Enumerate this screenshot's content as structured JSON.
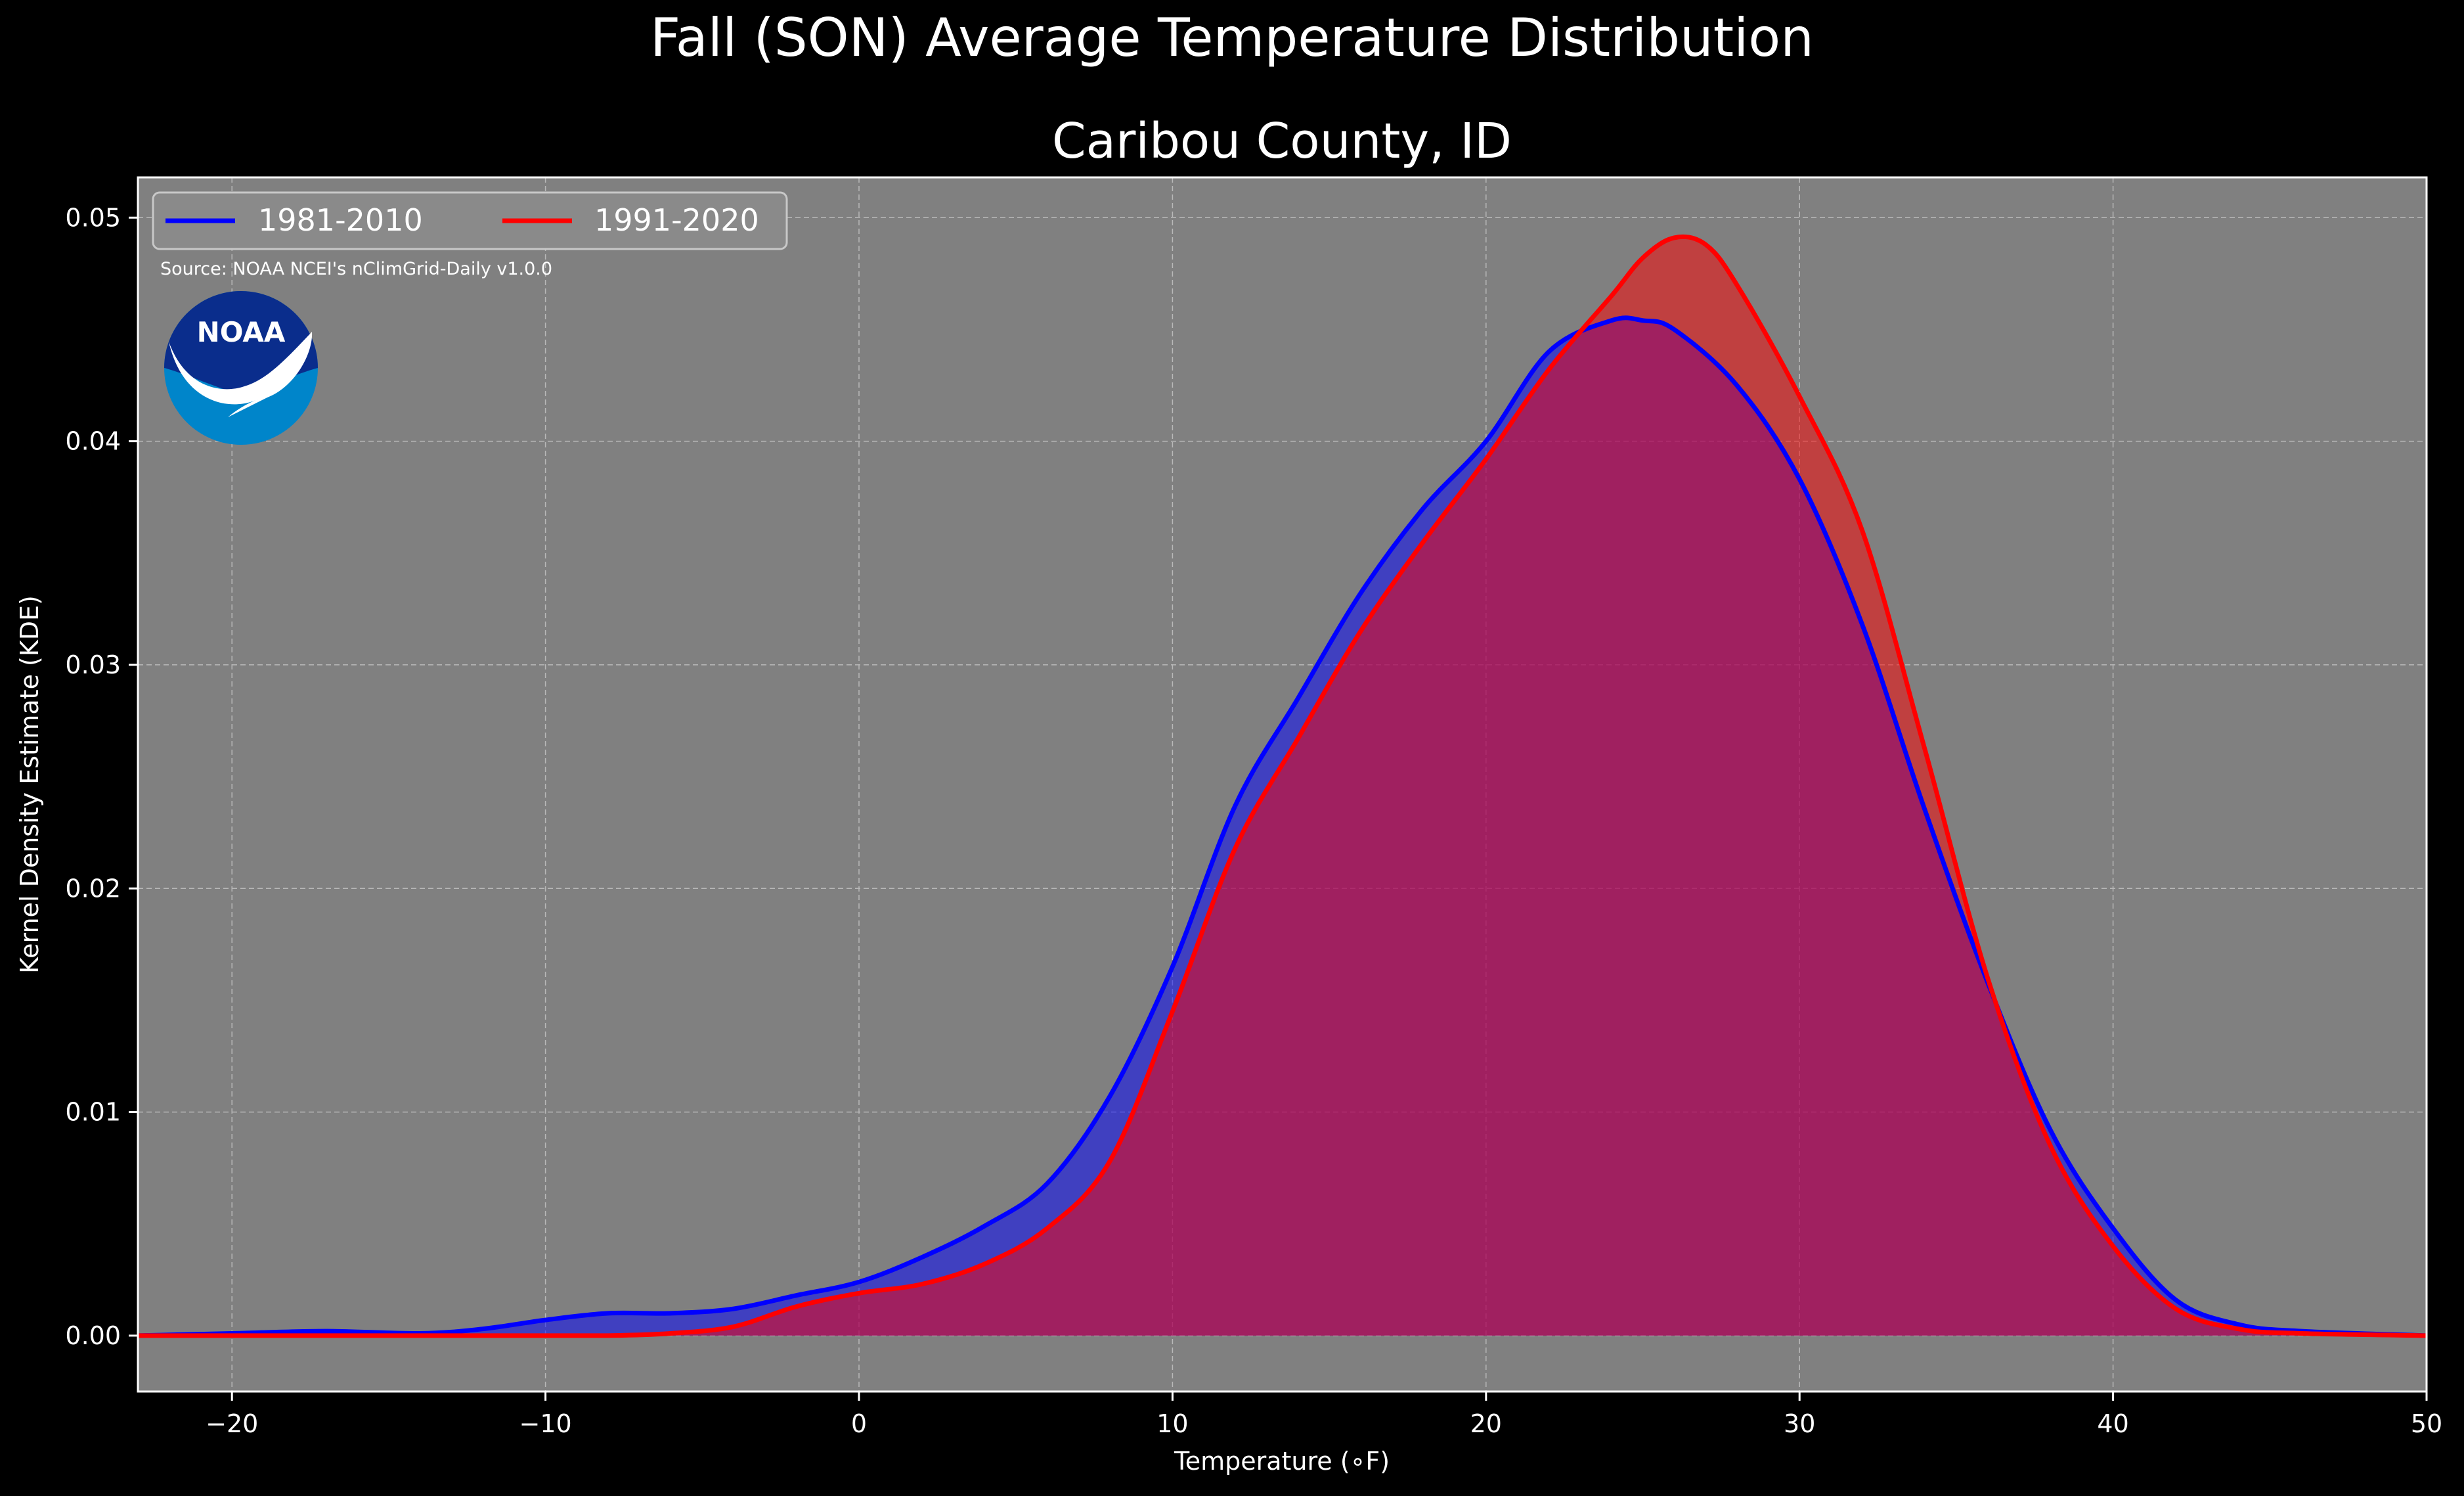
{
  "suptitle": "Fall (SON) Average Temperature Distribution",
  "source_note": "Source: NOAA NCEI's nClimGrid-Daily v1.0.0",
  "logo_text": "NOAA",
  "colors": {
    "figure_bg": "#000000",
    "axes_bg": "#808080",
    "series_1981": "#0000ff",
    "series_1991": "#ff0000",
    "text": "#ffffff",
    "logo_dark": "#0a2d8c",
    "logo_light": "#0085ca"
  },
  "chart_data": {
    "type": "area",
    "title": "Caribou County, ID",
    "xlabel": "Temperature ($^\\circ$F)",
    "xlabel_display": "Temperature (∘F)",
    "ylabel": "Kernel Density Estimate (KDE)",
    "xlim": [
      -23,
      50
    ],
    "ylim": [
      -0.0025,
      0.0518
    ],
    "xticks": [
      -20,
      -10,
      0,
      10,
      20,
      30,
      40,
      50
    ],
    "xtick_labels": [
      "−20",
      "−10",
      "0",
      "10",
      "20",
      "30",
      "40",
      "50"
    ],
    "yticks": [
      0.0,
      0.01,
      0.02,
      0.03,
      0.04,
      0.05
    ],
    "ytick_labels": [
      "0.00",
      "0.01",
      "0.02",
      "0.03",
      "0.04",
      "0.05"
    ],
    "grid": true,
    "legend": {
      "placement": "upper-left",
      "columns": 2
    },
    "series": [
      {
        "name": "1981-2010",
        "color": "#0000ff",
        "x": [
          -23,
          -20,
          -17,
          -14,
          -12,
          -10,
          -8,
          -6,
          -4,
          -2,
          0,
          2,
          4,
          6,
          8,
          10,
          12,
          14,
          16,
          18,
          20,
          22,
          24,
          25,
          26,
          28,
          30,
          32,
          34,
          36,
          38,
          40,
          42,
          44,
          46,
          50
        ],
        "y": [
          0.0,
          0.0001,
          0.0002,
          0.0001,
          0.0003,
          0.0007,
          0.001,
          0.001,
          0.0012,
          0.0018,
          0.0024,
          0.0035,
          0.0049,
          0.0068,
          0.0107,
          0.0165,
          0.0237,
          0.0285,
          0.0332,
          0.037,
          0.04,
          0.044,
          0.0454,
          0.0454,
          0.045,
          0.0425,
          0.0383,
          0.0318,
          0.0235,
          0.0158,
          0.0092,
          0.0048,
          0.0016,
          0.0005,
          0.0002,
          0.0
        ]
      },
      {
        "name": "1991-2020",
        "color": "#ff0000",
        "x": [
          -23,
          -20,
          -17,
          -14,
          -12,
          -10,
          -8,
          -6,
          -4,
          -2,
          0,
          2,
          4,
          6,
          8,
          10,
          12,
          14,
          16,
          18,
          20,
          22,
          24,
          25,
          26,
          27,
          28,
          30,
          32,
          34,
          36,
          38,
          40,
          42,
          44,
          46,
          50
        ],
        "y": [
          0.0,
          0.0,
          0.0,
          0.0,
          0.0,
          0.0,
          0.0,
          0.0001,
          0.0004,
          0.0013,
          0.0019,
          0.0023,
          0.0032,
          0.0048,
          0.0078,
          0.0145,
          0.0218,
          0.0267,
          0.0315,
          0.0355,
          0.0392,
          0.0432,
          0.0465,
          0.0482,
          0.0491,
          0.0488,
          0.047,
          0.042,
          0.036,
          0.0262,
          0.016,
          0.0085,
          0.004,
          0.0012,
          0.0003,
          0.0001,
          0.0
        ]
      }
    ]
  }
}
